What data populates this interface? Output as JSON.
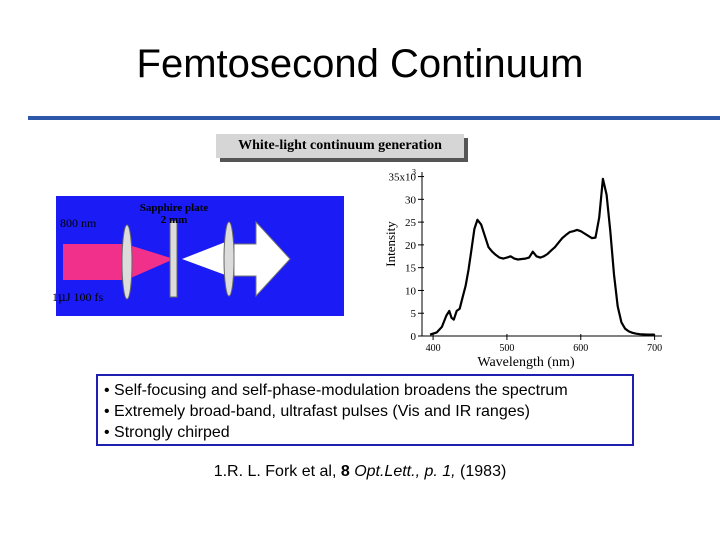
{
  "slide": {
    "title": "Femtosecond Continuum",
    "subtitle": "White-light continuum generation"
  },
  "diagram": {
    "input_wavelength": "800 nm",
    "plate_label_1": "Sapphire plate",
    "plate_label_2": "2 mm",
    "pulse_prefix": "1",
    "pulse_mu": "μ",
    "pulse_suffix": "J 100 fs",
    "colors": {
      "background": "#1b1bf5",
      "beam": "#f0308a",
      "optics": "#dcdcdc"
    }
  },
  "bullets": [
    "• Self-focusing and self-phase-modulation broadens the spectrum",
    "• Extremely broad-band, ultrafast pulses (Vis and IR ranges)",
    "• Strongly chirped"
  ],
  "reference": {
    "prefix": "1.R. L. Fork et al, ",
    "volume": "8",
    "journal": " Opt.Lett., p. 1,",
    "year": " (1983)"
  },
  "chart_data": {
    "type": "line",
    "title": "",
    "xlabel": "Wavelength (nm)",
    "ylabel": "Intensity",
    "xlim": [
      385,
      710
    ],
    "ylim": [
      0,
      36
    ],
    "xticks": [
      400,
      500,
      600,
      700
    ],
    "yticks": [
      0,
      5,
      10,
      15,
      20,
      25,
      30,
      35
    ],
    "ytick_top_label": "35x10",
    "ytick_top_exponent": "3",
    "grid": false,
    "color": "#000000",
    "series": [
      {
        "x": [
          396,
          405,
          412,
          418,
          422,
          425,
          428,
          432,
          436,
          440,
          444,
          448,
          452,
          456,
          460,
          465,
          470,
          475,
          480,
          485,
          490,
          495,
          500,
          505,
          510,
          515,
          520,
          525,
          530,
          535,
          540,
          545,
          550,
          555,
          560,
          565,
          570,
          575,
          580,
          585,
          590,
          595,
          600,
          605,
          610,
          615,
          620,
          625,
          630,
          635,
          640,
          645,
          650,
          655,
          660,
          665,
          670,
          675,
          680,
          690,
          700
        ],
        "y": [
          0.3,
          0.8,
          2.0,
          4.5,
          5.5,
          4.0,
          3.6,
          5.5,
          6.0,
          8.5,
          11.0,
          14.5,
          19.0,
          23.5,
          25.5,
          24.5,
          22.0,
          19.5,
          18.5,
          17.8,
          17.2,
          17.0,
          17.2,
          17.5,
          17.0,
          16.8,
          16.9,
          17.0,
          17.2,
          18.5,
          17.5,
          17.2,
          17.5,
          18.0,
          18.8,
          19.5,
          20.5,
          21.5,
          22.2,
          22.8,
          23.0,
          23.3,
          23.0,
          22.5,
          22.0,
          21.5,
          21.6,
          26.0,
          34.5,
          31.0,
          23.0,
          13.5,
          6.5,
          3.0,
          1.6,
          1.0,
          0.7,
          0.5,
          0.4,
          0.3,
          0.3
        ]
      }
    ]
  }
}
